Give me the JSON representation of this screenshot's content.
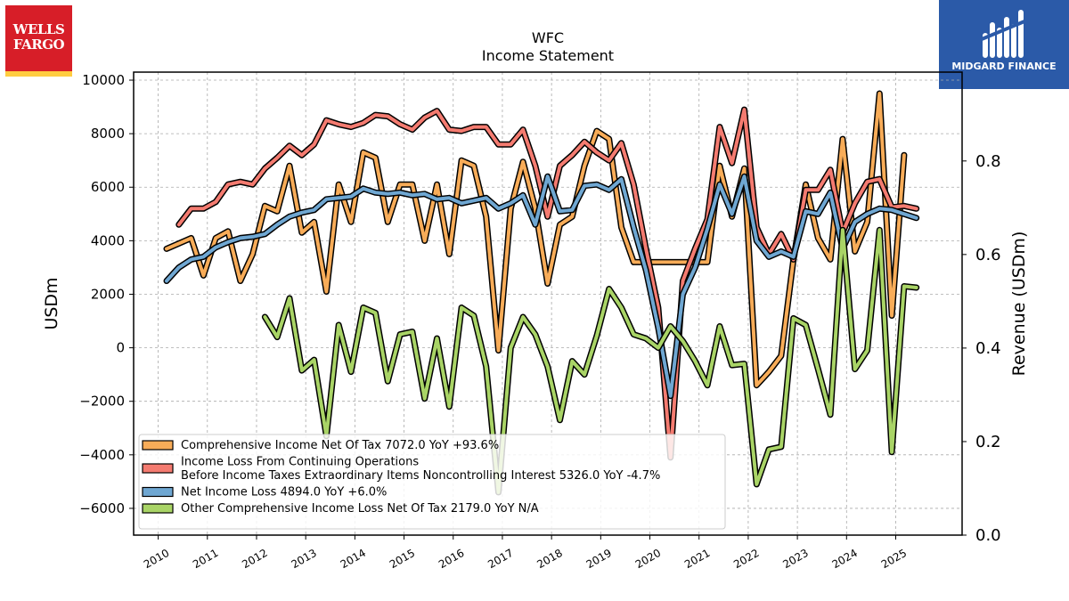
{
  "logos": {
    "left_line1": "WELLS",
    "left_line2": "FARGO",
    "right": "MIDGARD FINANCE"
  },
  "chart_data": {
    "type": "line",
    "title": "WFC",
    "subtitle": "Income Statement",
    "ylabel": "USDm",
    "ylabel_right": "Revenue (USDm)",
    "ylim": [
      -7000,
      10300
    ],
    "ylim_right": [
      0.0,
      0.99
    ],
    "yticks": [
      -6000,
      -4000,
      -2000,
      0,
      2000,
      4000,
      6000,
      8000,
      10000
    ],
    "yticks_right": [
      "0.0",
      "0.2",
      "0.4",
      "0.6",
      "0.8"
    ],
    "xlim": [
      2009.5,
      2026.35
    ],
    "xticks": [
      "2010",
      "2011",
      "2012",
      "2013",
      "2014",
      "2015",
      "2016",
      "2017",
      "2018",
      "2019",
      "2020",
      "2021",
      "2022",
      "2023",
      "2024",
      "2025"
    ],
    "grid": true,
    "legend_position": "lower-left",
    "series": [
      {
        "name": "Comprehensive Income Net Of Tax  7072.0 YoY +93.6%",
        "color": "#f8ac58",
        "x": [
          2010.17,
          2010.42,
          2010.67,
          2010.92,
          2011.17,
          2011.42,
          2011.67,
          2011.92,
          2012.17,
          2012.42,
          2012.67,
          2012.92,
          2013.17,
          2013.42,
          2013.67,
          2013.92,
          2014.17,
          2014.42,
          2014.67,
          2014.92,
          2015.17,
          2015.42,
          2015.67,
          2015.92,
          2016.17,
          2016.42,
          2016.67,
          2016.92,
          2017.17,
          2017.42,
          2017.67,
          2017.92,
          2018.17,
          2018.42,
          2018.67,
          2018.92,
          2019.17,
          2019.42,
          2019.67,
          2019.92,
          2020.17,
          2020.42,
          2020.67,
          2020.92,
          2021.17,
          2021.42,
          2021.67,
          2021.92,
          2022.17,
          2022.42,
          2022.67,
          2022.92,
          2023.17,
          2023.42,
          2023.67,
          2023.92,
          2024.17,
          2024.42,
          2024.67,
          2024.92,
          2025.17,
          2025.42
        ],
        "values": [
          3700,
          3900,
          4100,
          2700,
          4100,
          4350,
          2500,
          3500,
          5300,
          5100,
          6800,
          4300,
          4700,
          2100,
          6100,
          4700,
          7300,
          7100,
          4700,
          6100,
          6100,
          4000,
          6100,
          3500,
          7000,
          6800,
          4900,
          -100,
          5200,
          6950,
          5200,
          2400,
          4600,
          4900,
          6800,
          8100,
          7800,
          4500,
          3200,
          3200,
          3200,
          3200,
          3200,
          3200,
          3200,
          6800,
          4900,
          6700,
          -1400,
          -900,
          -300,
          3300,
          6100,
          4100,
          3300,
          7800,
          3600,
          4700,
          9500,
          1200,
          7200,
          null
        ]
      },
      {
        "name": "Income Loss From Continuing Operations\nBefore Income Taxes Extraordinary Items Noncontrolling Interest  5326.0 YoY -4.7%",
        "color": "#f47b70",
        "x": [
          2010.42,
          2010.67,
          2010.92,
          2011.17,
          2011.42,
          2011.67,
          2011.92,
          2012.17,
          2012.42,
          2012.67,
          2012.92,
          2013.17,
          2013.42,
          2013.67,
          2013.92,
          2014.17,
          2014.42,
          2014.67,
          2014.92,
          2015.17,
          2015.42,
          2015.67,
          2015.92,
          2016.17,
          2016.42,
          2016.67,
          2016.92,
          2017.17,
          2017.42,
          2017.67,
          2017.92,
          2018.17,
          2018.42,
          2018.67,
          2018.92,
          2019.17,
          2019.42,
          2019.67,
          2019.92,
          2020.17,
          2020.42,
          2020.67,
          2020.92,
          2021.17,
          2021.42,
          2021.67,
          2021.92,
          2022.17,
          2022.42,
          2022.67,
          2022.92,
          2023.17,
          2023.42,
          2023.67,
          2023.92,
          2024.17,
          2024.42,
          2024.67,
          2024.92,
          2025.17,
          2025.42
        ],
        "values": [
          4600,
          5200,
          5200,
          5450,
          6100,
          6200,
          6100,
          6700,
          7100,
          7550,
          7200,
          7600,
          8500,
          8350,
          8250,
          8400,
          8700,
          8650,
          8350,
          8150,
          8600,
          8850,
          8150,
          8100,
          8250,
          8250,
          7600,
          7600,
          8150,
          6800,
          4900,
          6800,
          7200,
          7700,
          7300,
          7000,
          7650,
          6100,
          3700,
          1500,
          -4100,
          2500,
          3700,
          4800,
          8250,
          6900,
          8900,
          4500,
          3500,
          4250,
          3300,
          5900,
          5900,
          6650,
          4300,
          5400,
          6200,
          6300,
          5250,
          5300,
          5200
        ]
      },
      {
        "name": "Net Income Loss  4894.0 YoY +6.0%",
        "color": "#6fa7d2",
        "x": [
          2010.17,
          2010.42,
          2010.67,
          2010.92,
          2011.17,
          2011.42,
          2011.67,
          2011.92,
          2012.17,
          2012.42,
          2012.67,
          2012.92,
          2013.17,
          2013.42,
          2013.67,
          2013.92,
          2014.17,
          2014.42,
          2014.67,
          2014.92,
          2015.17,
          2015.42,
          2015.67,
          2015.92,
          2016.17,
          2016.42,
          2016.67,
          2016.92,
          2017.17,
          2017.42,
          2017.67,
          2017.92,
          2018.17,
          2018.42,
          2018.67,
          2018.92,
          2019.17,
          2019.42,
          2019.67,
          2019.92,
          2020.17,
          2020.42,
          2020.67,
          2020.92,
          2021.17,
          2021.42,
          2021.67,
          2021.92,
          2022.17,
          2022.42,
          2022.67,
          2022.92,
          2023.17,
          2023.42,
          2023.67,
          2023.92,
          2024.17,
          2024.42,
          2024.67,
          2024.92,
          2025.17,
          2025.42
        ],
        "values": [
          2500,
          3000,
          3300,
          3400,
          3750,
          3950,
          4100,
          4150,
          4250,
          4600,
          4900,
          5050,
          5150,
          5550,
          5600,
          5650,
          5950,
          5800,
          5750,
          5800,
          5700,
          5750,
          5550,
          5600,
          5400,
          5500,
          5600,
          5200,
          5400,
          5700,
          4600,
          6400,
          5100,
          5150,
          6050,
          6100,
          5900,
          6300,
          4500,
          2900,
          750,
          -1800,
          2000,
          3000,
          4450,
          6100,
          5000,
          6400,
          4000,
          3400,
          3600,
          3400,
          5100,
          5000,
          5800,
          3700,
          4700,
          5000,
          5200,
          5150,
          5000,
          4850
        ]
      },
      {
        "name": "Other Comprehensive Income Loss Net Of Tax  2179.0 YoY N/A",
        "color": "#a9d466",
        "x": [
          2012.17,
          2012.42,
          2012.67,
          2012.92,
          2013.17,
          2013.42,
          2013.67,
          2013.92,
          2014.17,
          2014.42,
          2014.67,
          2014.92,
          2015.17,
          2015.42,
          2015.67,
          2015.92,
          2016.17,
          2016.42,
          2016.67,
          2016.92,
          2017.17,
          2017.42,
          2017.67,
          2017.92,
          2018.17,
          2018.42,
          2018.67,
          2018.92,
          2019.17,
          2019.42,
          2019.67,
          2019.92,
          2020.17,
          2020.42,
          2020.67,
          2020.92,
          2021.17,
          2021.42,
          2021.67,
          2021.92,
          2022.17,
          2022.42,
          2022.67,
          2022.92,
          2023.17,
          2023.42,
          2023.67,
          2023.92,
          2024.17,
          2024.42,
          2024.67,
          2024.92,
          2025.17,
          2025.42
        ],
        "values": [
          1150,
          400,
          1850,
          -850,
          -450,
          -3300,
          850,
          -900,
          1500,
          1300,
          -1250,
          500,
          600,
          -1900,
          350,
          -2200,
          1500,
          1200,
          -700,
          -5400,
          0,
          1150,
          500,
          -700,
          -2700,
          -500,
          -1000,
          450,
          2200,
          1500,
          500,
          350,
          0,
          800,
          250,
          -500,
          -1400,
          800,
          -650,
          -600,
          -5100,
          -3800,
          -3700,
          1100,
          850,
          -800,
          -2500,
          4400,
          -800,
          -100,
          4400,
          -3900,
          2300,
          2250
        ]
      }
    ]
  }
}
